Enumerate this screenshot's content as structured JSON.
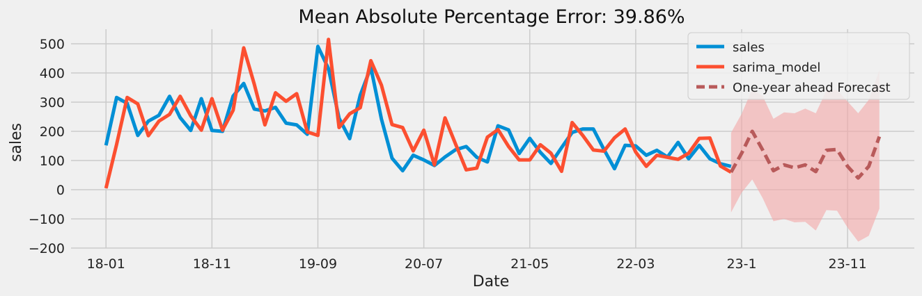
{
  "chart_data": {
    "type": "line",
    "title": "Mean Absolute Percentage Error: 39.86%",
    "xlabel": "Date",
    "ylabel": "sales",
    "ylim": [
      -200,
      550
    ],
    "y_ticks": [
      -200,
      -100,
      0,
      100,
      200,
      300,
      400,
      500
    ],
    "x_ticks": [
      {
        "label": "18-01",
        "t": 0
      },
      {
        "label": "18-11",
        "t": 10
      },
      {
        "label": "19-09",
        "t": 20
      },
      {
        "label": "20-07",
        "t": 30
      },
      {
        "label": "21-05",
        "t": 40
      },
      {
        "label": "22-03",
        "t": 50
      },
      {
        "label": "23-1",
        "t": 60
      },
      {
        "label": "23-11",
        "t": 70
      }
    ],
    "xlim": [
      -3.3,
      76.3
    ],
    "grid": true,
    "legend_position": "top-right",
    "colors": {
      "background": "#f0f0f0",
      "grid": "#cbcbcb",
      "sales": "#008fd5",
      "sarima_model": "#fc4f30",
      "forecast": "#b85a5a",
      "confidence_band": "#f4a6a6"
    },
    "series": [
      {
        "name": "sales",
        "style": "solid",
        "t_start": 0,
        "values": [
          152,
          316,
          296,
          186,
          235,
          255,
          320,
          247,
          203,
          312,
          203,
          200,
          321,
          364,
          276,
          270,
          282,
          228,
          222,
          190,
          491,
          415,
          245,
          175,
          324,
          419,
          242,
          108,
          65,
          118,
          102,
          83,
          112,
          137,
          148,
          111,
          95,
          219,
          205,
          124,
          176,
          128,
          90,
          144,
          196,
          208,
          208,
          138,
          72,
          152,
          150,
          118,
          135,
          112,
          162,
          106,
          152,
          106,
          89,
          80
        ]
      },
      {
        "name": "sarima_model",
        "style": "solid",
        "t_start": 0,
        "values": [
          5,
          155,
          316,
          294,
          185,
          235,
          258,
          320,
          253,
          204,
          312,
          204,
          272,
          486,
          361,
          222,
          332,
          303,
          329,
          198,
          186,
          515,
          213,
          260,
          281,
          442,
          358,
          223,
          213,
          133,
          204,
          85,
          246,
          156,
          68,
          74,
          180,
          206,
          148,
          102,
          102,
          154,
          125,
          63,
          230,
          186,
          136,
          132,
          178,
          208,
          129,
          80,
          118,
          111,
          104,
          125,
          176,
          177,
          81,
          60
        ]
      },
      {
        "name": "One-year ahead Forecast",
        "style": "dashed",
        "t_start": 59,
        "values": [
          60,
          125,
          200,
          135,
          65,
          85,
          75,
          85,
          62,
          135,
          138,
          80,
          40,
          80,
          182
        ],
        "upper": [
          195,
          260,
          345,
          320,
          243,
          265,
          262,
          278,
          262,
          340,
          342,
          302,
          262,
          308,
          410
        ],
        "lower": [
          -78,
          -10,
          35,
          -30,
          -108,
          -100,
          -112,
          -110,
          -140,
          -70,
          -72,
          -130,
          -178,
          -158,
          -65
        ]
      }
    ]
  }
}
